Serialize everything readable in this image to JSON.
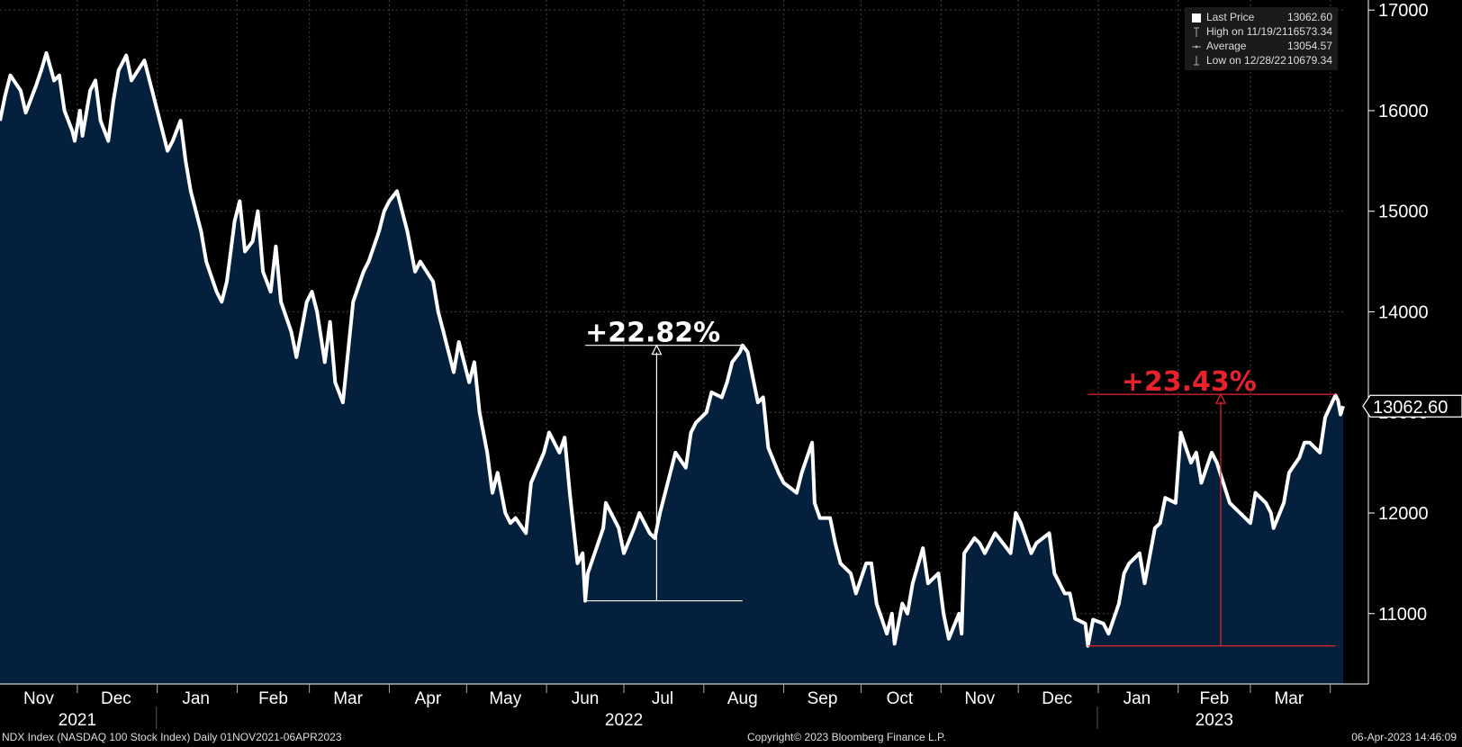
{
  "chart_data": {
    "type": "line",
    "xlim": [
      "2021-11-01",
      "2023-04-06"
    ],
    "ylim": [
      10300,
      17100
    ],
    "y_ticks": [
      11000,
      12000,
      13000,
      14000,
      15000,
      16000,
      17000
    ],
    "y_tick_labels": [
      "11000",
      "12000",
      "13000",
      "14000",
      "15000",
      "16000",
      "17000"
    ],
    "month_labels": [
      {
        "label": "Nov",
        "date": "2021-11-16"
      },
      {
        "label": "Dec",
        "date": "2021-12-16"
      },
      {
        "label": "Jan",
        "date": "2022-01-16"
      },
      {
        "label": "Feb",
        "date": "2022-02-15"
      },
      {
        "label": "Mar",
        "date": "2022-03-16"
      },
      {
        "label": "Apr",
        "date": "2022-04-16"
      },
      {
        "label": "May",
        "date": "2022-05-16"
      },
      {
        "label": "Jun",
        "date": "2022-06-16"
      },
      {
        "label": "Jul",
        "date": "2022-07-16"
      },
      {
        "label": "Aug",
        "date": "2022-08-16"
      },
      {
        "label": "Sep",
        "date": "2022-09-16"
      },
      {
        "label": "Oct",
        "date": "2022-10-16"
      },
      {
        "label": "Nov",
        "date": "2022-11-16"
      },
      {
        "label": "Dec",
        "date": "2022-12-16"
      },
      {
        "label": "Jan",
        "date": "2023-01-16"
      },
      {
        "label": "Feb",
        "date": "2023-02-15"
      },
      {
        "label": "Mar",
        "date": "2023-03-16"
      }
    ],
    "month_separators": [
      "2021-12-01",
      "2022-01-01",
      "2022-02-01",
      "2022-03-01",
      "2022-04-01",
      "2022-05-01",
      "2022-06-01",
      "2022-07-01",
      "2022-08-01",
      "2022-09-01",
      "2022-10-01",
      "2022-11-01",
      "2022-12-01",
      "2023-01-01",
      "2023-02-01",
      "2023-03-01",
      "2023-04-01"
    ],
    "year_labels": [
      {
        "label": "2021",
        "date": "2021-12-01"
      },
      {
        "label": "2022",
        "date": "2022-07-01"
      },
      {
        "label": "2023",
        "date": "2023-02-15"
      }
    ],
    "year_separators": [
      "2022-01-01",
      "2023-01-01"
    ],
    "series": [
      {
        "color": "#ffffff",
        "fill": "#05203d",
        "points": [
          [
            "2021-11-01",
            15900
          ],
          [
            "2021-11-03",
            16150
          ],
          [
            "2021-11-05",
            16350
          ],
          [
            "2021-11-09",
            16200
          ],
          [
            "2021-11-11",
            15980
          ],
          [
            "2021-11-15",
            16250
          ],
          [
            "2021-11-17",
            16400
          ],
          [
            "2021-11-19",
            16573
          ],
          [
            "2021-11-22",
            16300
          ],
          [
            "2021-11-24",
            16350
          ],
          [
            "2021-11-26",
            16000
          ],
          [
            "2021-11-29",
            15800
          ],
          [
            "2021-11-30",
            15700
          ],
          [
            "2021-12-02",
            16000
          ],
          [
            "2021-12-03",
            15750
          ],
          [
            "2021-12-06",
            16200
          ],
          [
            "2021-12-08",
            16300
          ],
          [
            "2021-12-10",
            15900
          ],
          [
            "2021-12-13",
            15700
          ],
          [
            "2021-12-15",
            16100
          ],
          [
            "2021-12-17",
            16400
          ],
          [
            "2021-12-20",
            16550
          ],
          [
            "2021-12-22",
            16300
          ],
          [
            "2021-12-27",
            16500
          ],
          [
            "2021-12-29",
            16300
          ],
          [
            "2022-01-03",
            15800
          ],
          [
            "2022-01-05",
            15600
          ],
          [
            "2022-01-07",
            15700
          ],
          [
            "2022-01-10",
            15900
          ],
          [
            "2022-01-12",
            15500
          ],
          [
            "2022-01-14",
            15200
          ],
          [
            "2022-01-18",
            14800
          ],
          [
            "2022-01-20",
            14500
          ],
          [
            "2022-01-24",
            14200
          ],
          [
            "2022-01-26",
            14100
          ],
          [
            "2022-01-28",
            14300
          ],
          [
            "2022-01-31",
            14900
          ],
          [
            "2022-02-02",
            15100
          ],
          [
            "2022-02-04",
            14600
          ],
          [
            "2022-02-07",
            14700
          ],
          [
            "2022-02-09",
            15000
          ],
          [
            "2022-02-11",
            14400
          ],
          [
            "2022-02-14",
            14200
          ],
          [
            "2022-02-16",
            14650
          ],
          [
            "2022-02-18",
            14100
          ],
          [
            "2022-02-22",
            13800
          ],
          [
            "2022-02-24",
            13550
          ],
          [
            "2022-02-28",
            14100
          ],
          [
            "2022-03-02",
            14200
          ],
          [
            "2022-03-04",
            14000
          ],
          [
            "2022-03-07",
            13500
          ],
          [
            "2022-03-09",
            13900
          ],
          [
            "2022-03-11",
            13300
          ],
          [
            "2022-03-14",
            13100
          ],
          [
            "2022-03-16",
            13600
          ],
          [
            "2022-03-18",
            14100
          ],
          [
            "2022-03-22",
            14400
          ],
          [
            "2022-03-24",
            14500
          ],
          [
            "2022-03-28",
            14800
          ],
          [
            "2022-03-30",
            15000
          ],
          [
            "2022-04-01",
            15100
          ],
          [
            "2022-04-04",
            15200
          ],
          [
            "2022-04-06",
            15000
          ],
          [
            "2022-04-08",
            14800
          ],
          [
            "2022-04-11",
            14400
          ],
          [
            "2022-04-13",
            14500
          ],
          [
            "2022-04-18",
            14300
          ],
          [
            "2022-04-20",
            14000
          ],
          [
            "2022-04-22",
            13800
          ],
          [
            "2022-04-26",
            13400
          ],
          [
            "2022-04-28",
            13700
          ],
          [
            "2022-05-02",
            13300
          ],
          [
            "2022-05-04",
            13500
          ],
          [
            "2022-05-06",
            13000
          ],
          [
            "2022-05-09",
            12600
          ],
          [
            "2022-05-11",
            12200
          ],
          [
            "2022-05-13",
            12400
          ],
          [
            "2022-05-16",
            12000
          ],
          [
            "2022-05-18",
            11900
          ],
          [
            "2022-05-20",
            11950
          ],
          [
            "2022-05-24",
            11800
          ],
          [
            "2022-05-26",
            12300
          ],
          [
            "2022-05-31",
            12600
          ],
          [
            "2022-06-02",
            12800
          ],
          [
            "2022-06-06",
            12600
          ],
          [
            "2022-06-08",
            12750
          ],
          [
            "2022-06-10",
            12200
          ],
          [
            "2022-06-13",
            11500
          ],
          [
            "2022-06-15",
            11600
          ],
          [
            "2022-06-16",
            11127
          ],
          [
            "2022-06-17",
            11400
          ],
          [
            "2022-06-21",
            11700
          ],
          [
            "2022-06-23",
            11850
          ],
          [
            "2022-06-24",
            12100
          ],
          [
            "2022-06-27",
            11950
          ],
          [
            "2022-06-29",
            11850
          ],
          [
            "2022-07-01",
            11600
          ],
          [
            "2022-07-05",
            11850
          ],
          [
            "2022-07-07",
            12000
          ],
          [
            "2022-07-11",
            11800
          ],
          [
            "2022-07-13",
            11750
          ],
          [
            "2022-07-15",
            12000
          ],
          [
            "2022-07-19",
            12400
          ],
          [
            "2022-07-21",
            12600
          ],
          [
            "2022-07-25",
            12450
          ],
          [
            "2022-07-27",
            12800
          ],
          [
            "2022-07-29",
            12900
          ],
          [
            "2022-08-02",
            13000
          ],
          [
            "2022-08-04",
            13200
          ],
          [
            "2022-08-08",
            13150
          ],
          [
            "2022-08-10",
            13300
          ],
          [
            "2022-08-12",
            13500
          ],
          [
            "2022-08-15",
            13600
          ],
          [
            "2022-08-16",
            13667
          ],
          [
            "2022-08-18",
            13600
          ],
          [
            "2022-08-22",
            13100
          ],
          [
            "2022-08-24",
            13150
          ],
          [
            "2022-08-26",
            12650
          ],
          [
            "2022-08-30",
            12400
          ],
          [
            "2022-09-01",
            12300
          ],
          [
            "2022-09-06",
            12200
          ],
          [
            "2022-09-08",
            12400
          ],
          [
            "2022-09-12",
            12700
          ],
          [
            "2022-09-13",
            12100
          ],
          [
            "2022-09-15",
            11950
          ],
          [
            "2022-09-19",
            11950
          ],
          [
            "2022-09-21",
            11700
          ],
          [
            "2022-09-23",
            11500
          ],
          [
            "2022-09-27",
            11400
          ],
          [
            "2022-09-29",
            11200
          ],
          [
            "2022-10-03",
            11500
          ],
          [
            "2022-10-05",
            11500
          ],
          [
            "2022-10-07",
            11100
          ],
          [
            "2022-10-11",
            10800
          ],
          [
            "2022-10-13",
            11000
          ],
          [
            "2022-10-14",
            10700
          ],
          [
            "2022-10-17",
            11100
          ],
          [
            "2022-10-19",
            11000
          ],
          [
            "2022-10-21",
            11300
          ],
          [
            "2022-10-25",
            11650
          ],
          [
            "2022-10-27",
            11300
          ],
          [
            "2022-10-31",
            11400
          ],
          [
            "2022-11-02",
            11000
          ],
          [
            "2022-11-04",
            10750
          ],
          [
            "2022-11-08",
            11000
          ],
          [
            "2022-11-09",
            10800
          ],
          [
            "2022-11-10",
            11600
          ],
          [
            "2022-11-14",
            11750
          ],
          [
            "2022-11-16",
            11700
          ],
          [
            "2022-11-18",
            11600
          ],
          [
            "2022-11-22",
            11800
          ],
          [
            "2022-11-25",
            11700
          ],
          [
            "2022-11-28",
            11600
          ],
          [
            "2022-11-30",
            12000
          ],
          [
            "2022-12-02",
            11900
          ],
          [
            "2022-12-06",
            11600
          ],
          [
            "2022-12-08",
            11700
          ],
          [
            "2022-12-13",
            11800
          ],
          [
            "2022-12-15",
            11400
          ],
          [
            "2022-12-19",
            11200
          ],
          [
            "2022-12-21",
            11200
          ],
          [
            "2022-12-23",
            10950
          ],
          [
            "2022-12-27",
            10900
          ],
          [
            "2022-12-28",
            10679
          ],
          [
            "2022-12-30",
            10940
          ],
          [
            "2023-01-03",
            10900
          ],
          [
            "2023-01-05",
            10800
          ],
          [
            "2023-01-09",
            11100
          ],
          [
            "2023-01-11",
            11400
          ],
          [
            "2023-01-13",
            11500
          ],
          [
            "2023-01-17",
            11600
          ],
          [
            "2023-01-19",
            11300
          ],
          [
            "2023-01-23",
            11850
          ],
          [
            "2023-01-25",
            11900
          ],
          [
            "2023-01-27",
            12150
          ],
          [
            "2023-01-31",
            12100
          ],
          [
            "2023-02-02",
            12800
          ],
          [
            "2023-02-06",
            12500
          ],
          [
            "2023-02-08",
            12600
          ],
          [
            "2023-02-10",
            12300
          ],
          [
            "2023-02-14",
            12600
          ],
          [
            "2023-02-16",
            12500
          ],
          [
            "2023-02-21",
            12100
          ],
          [
            "2023-02-23",
            12050
          ],
          [
            "2023-02-27",
            11950
          ],
          [
            "2023-03-01",
            11900
          ],
          [
            "2023-03-03",
            12200
          ],
          [
            "2023-03-07",
            12100
          ],
          [
            "2023-03-09",
            12000
          ],
          [
            "2023-03-10",
            11850
          ],
          [
            "2023-03-14",
            12100
          ],
          [
            "2023-03-16",
            12400
          ],
          [
            "2023-03-20",
            12550
          ],
          [
            "2023-03-22",
            12700
          ],
          [
            "2023-03-24",
            12700
          ],
          [
            "2023-03-28",
            12600
          ],
          [
            "2023-03-30",
            12950
          ],
          [
            "2023-04-03",
            13170
          ],
          [
            "2023-04-04",
            13120
          ],
          [
            "2023-04-05",
            12980
          ],
          [
            "2023-04-06",
            13062.6
          ]
        ]
      }
    ],
    "last_value_label": "13062.60",
    "last_value": 13062.6,
    "annotations": [
      {
        "text": "+22.82%",
        "color": "#ffffff",
        "low_date": "2022-06-16",
        "low": 11127,
        "high_date": "2022-08-16",
        "high": 13667,
        "line_start": "2022-06-16",
        "line_end": "2022-08-16",
        "label_date": "2022-06-16"
      },
      {
        "text": "+23.43%",
        "color": "#e8222d",
        "low_date": "2022-12-28",
        "low": 10679,
        "high_date": "2023-04-03",
        "high": 13180,
        "line_start": "2022-12-28",
        "line_end": "2023-04-03",
        "label_date": "2023-01-10"
      }
    ]
  },
  "legend": {
    "items": [
      {
        "label": "Last Price",
        "value": "13062.60",
        "marker": "square"
      },
      {
        "label": "High on 11/19/21",
        "value": "16573.34",
        "marker": "high"
      },
      {
        "label": "Average",
        "value": "13054.57",
        "marker": "avg"
      },
      {
        "label": "Low on 12/28/22",
        "value": "10679.34",
        "marker": "low"
      }
    ]
  },
  "footer": {
    "left": "NDX Index (NASDAQ 100 Stock Index)  Daily 01NOV2021-06APR2023",
    "center": "Copyright© 2023 Bloomberg Finance L.P.",
    "right": "06-Apr-2023 14:46:09"
  }
}
